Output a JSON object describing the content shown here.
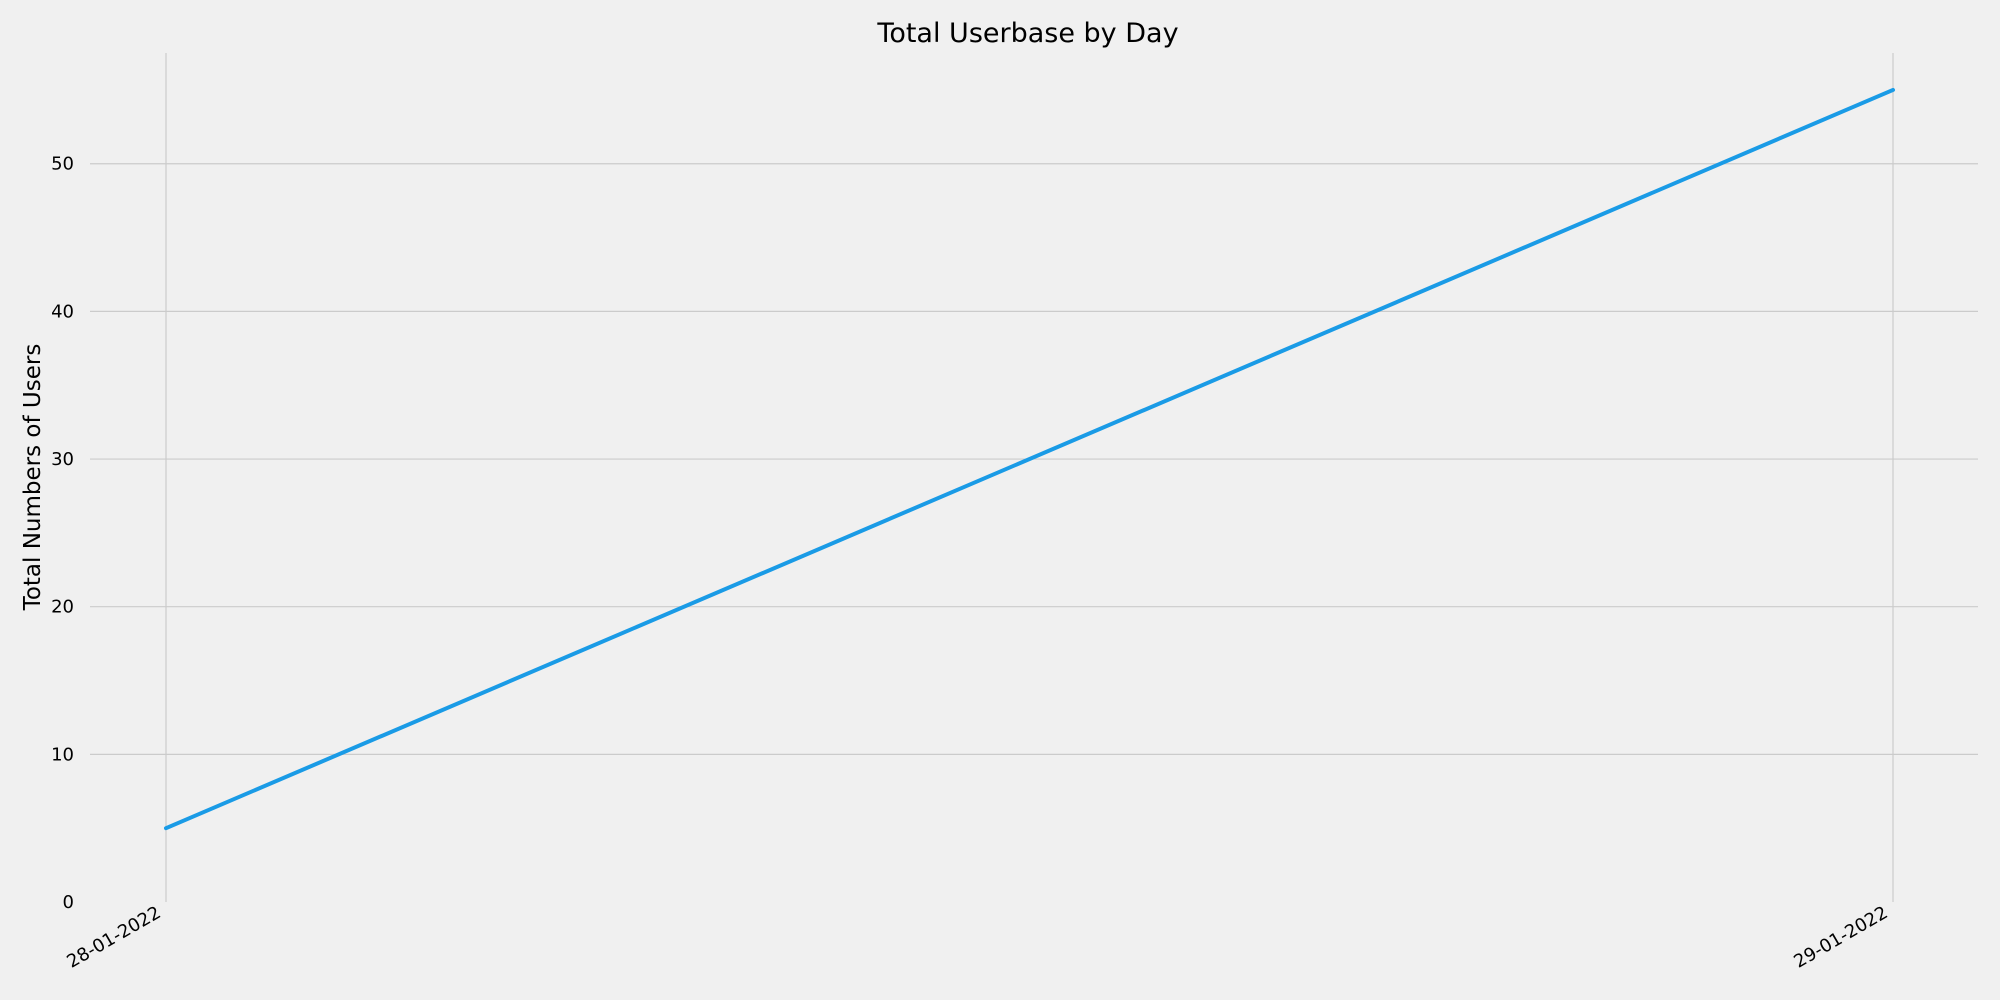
{
  "chart_data": {
    "type": "line",
    "title": "Total Userbase by Day",
    "xlabel": "",
    "ylabel": "Total Numbers of Users",
    "x": [
      "28-01-2022",
      "29-01-2022"
    ],
    "x_tick_labels": [
      "28-01-2022",
      "29-01-2022"
    ],
    "y_ticks": [
      0,
      10,
      20,
      30,
      40,
      50
    ],
    "ylim": [
      0,
      57.5
    ],
    "grid": true,
    "series": [
      {
        "values": [
          5,
          55
        ],
        "color": "#1a9be6"
      }
    ],
    "background_color": "#f0f0f0",
    "grid_color": "#cbcbcb"
  }
}
